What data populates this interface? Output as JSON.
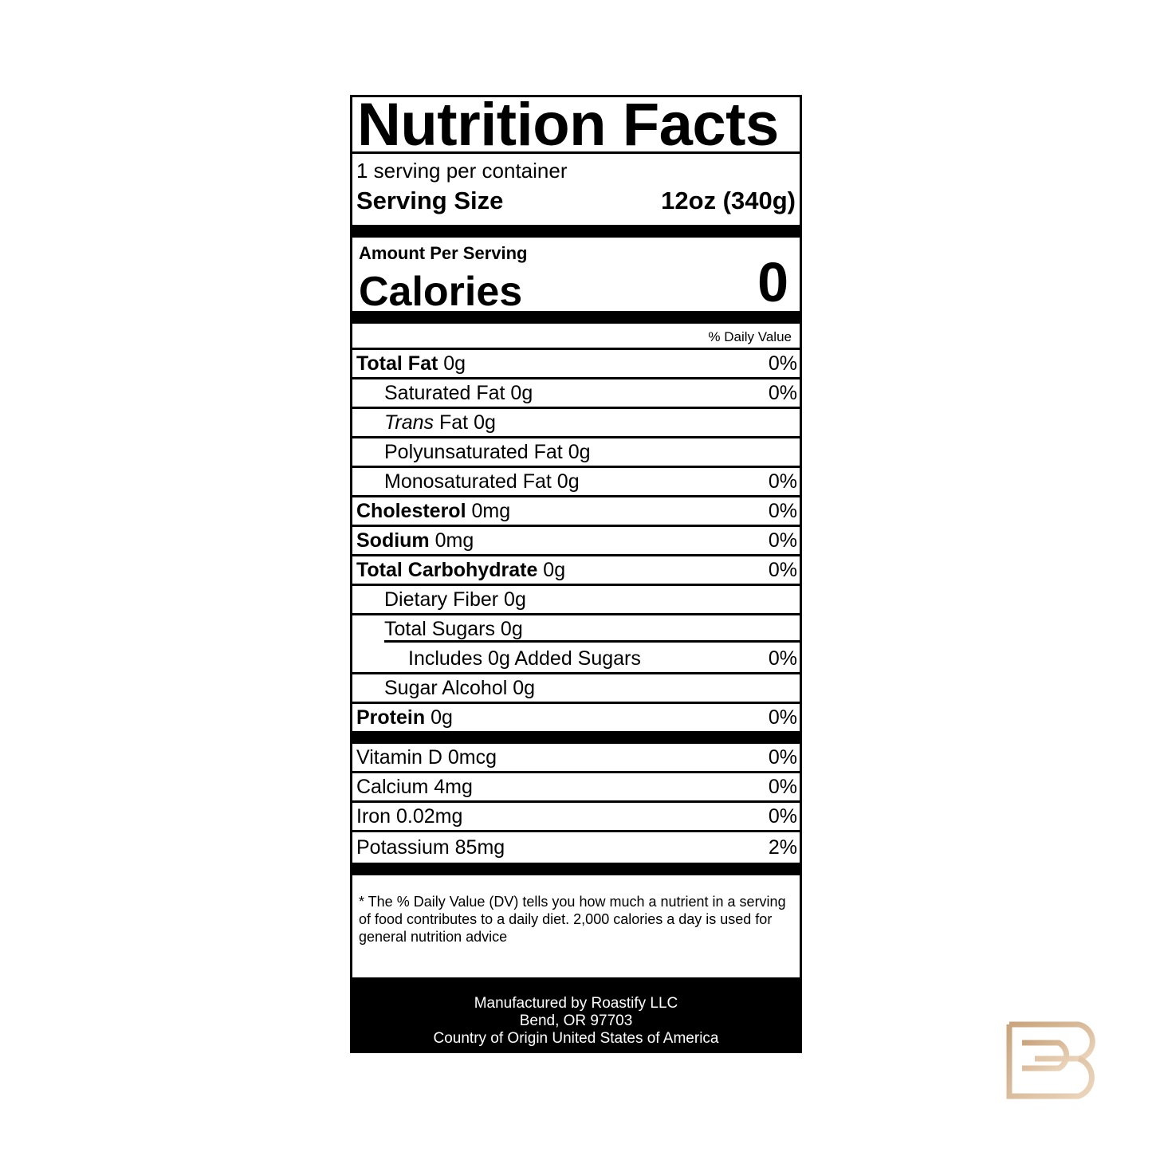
{
  "title": "Nutrition Facts",
  "servings_per_container": "1 serving per container",
  "serving_size": {
    "label": "Serving Size",
    "value": "12oz (340g)"
  },
  "amount_per_serving": "Amount Per Serving",
  "calories": {
    "label": "Calories",
    "value": "0"
  },
  "daily_value_header": "% Daily Value",
  "nutrients": [
    {
      "name": "Total Fat",
      "amount": "0g",
      "dv": "0%"
    },
    {
      "name": "Saturated Fat 0g",
      "dv": "0%"
    },
    {
      "name_italic": "Trans",
      "name": " Fat 0g"
    },
    {
      "name": "Polyunsaturated Fat 0g"
    },
    {
      "name": "Monosaturated Fat 0g",
      "dv": "0%"
    },
    {
      "name": "Cholesterol",
      "amount": "0mg",
      "dv": "0%"
    },
    {
      "name": "Sodium",
      "amount": "0mg",
      "dv": "0%"
    },
    {
      "name": "Total Carbohydrate",
      "amount": "0g",
      "dv": "0%"
    },
    {
      "name": "Dietary Fiber 0g"
    },
    {
      "name": "Total Sugars 0g"
    },
    {
      "name": "Includes 0g Added Sugars",
      "dv": "0%"
    },
    {
      "name": "Sugar Alcohol 0g"
    },
    {
      "name": "Protein",
      "amount": "0g",
      "dv": "0%"
    }
  ],
  "vitamins": [
    {
      "name": "Vitamin D 0mcg",
      "dv": "0%"
    },
    {
      "name": "Calcium 4mg",
      "dv": "0%"
    },
    {
      "name": "Iron 0.02mg",
      "dv": "0%"
    },
    {
      "name": "Potassium 85mg",
      "dv": "2%"
    }
  ],
  "footnote": "* The % Daily Value (DV) tells you how much a nutrient in a serving of food contributes to a daily diet. 2,000 calories a day is used for general nutrition advice",
  "manufacturer": [
    "Manufactured by Roastify LLC",
    "Bend, OR 97703",
    "Country of Origin United States of America"
  ],
  "logo": {
    "letters": "PB",
    "color": "#d9b892"
  }
}
